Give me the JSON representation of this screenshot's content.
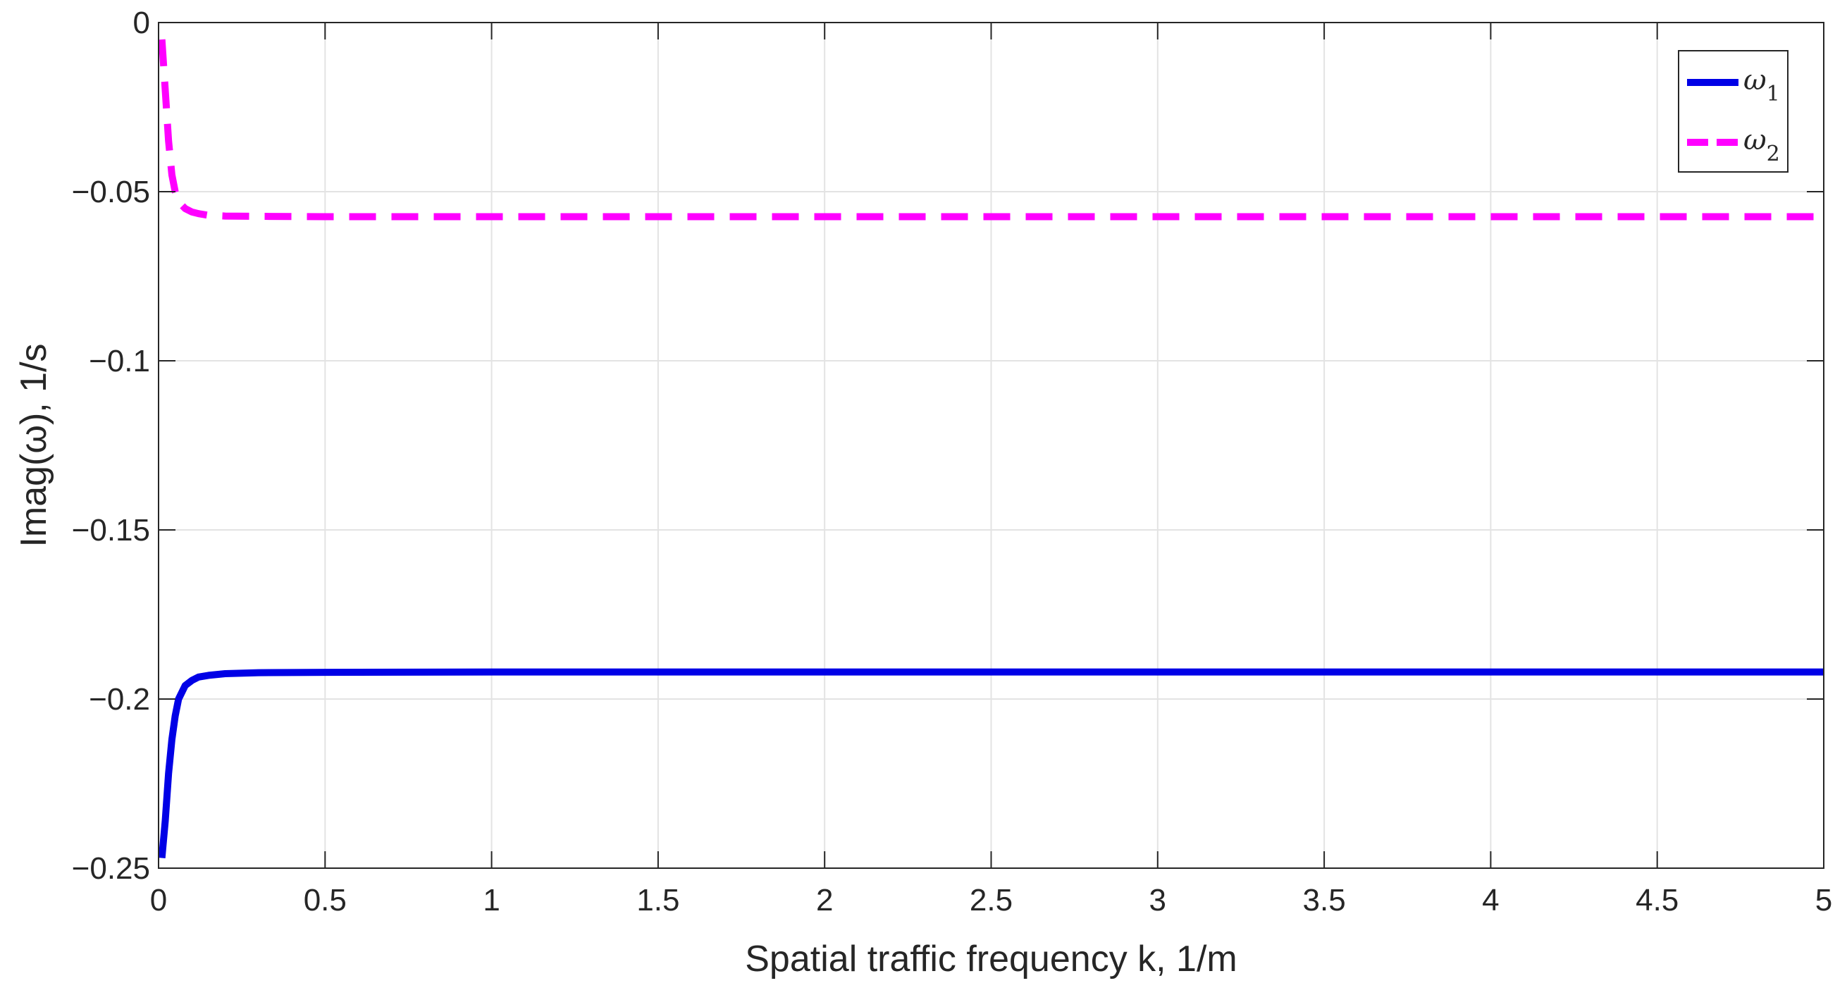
{
  "chart_data": {
    "type": "line",
    "title": "",
    "xlabel": "Spatial traffic frequency  k, 1/m",
    "ylabel": "Imag(ω), 1/s",
    "xlim": [
      0,
      5
    ],
    "ylim": [
      -0.25,
      0
    ],
    "xticks": [
      0,
      0.5,
      1,
      1.5,
      2,
      2.5,
      3,
      3.5,
      4,
      4.5,
      5
    ],
    "xtick_labels": [
      "0",
      "0.5",
      "1",
      "1.5",
      "2",
      "2.5",
      "3",
      "3.5",
      "4",
      "4.5",
      "5"
    ],
    "yticks": [
      0,
      -0.05,
      -0.1,
      -0.15,
      -0.2,
      -0.25
    ],
    "ytick_labels": [
      "0",
      "−0.05",
      "−0.1",
      "−0.15",
      "−0.2",
      "−0.25"
    ],
    "grid": true,
    "legend_position": "top-right",
    "series": [
      {
        "name": "ω1",
        "name_base": "ω",
        "name_sub": "1",
        "color": "#0000e6",
        "style": "solid",
        "x": [
          0.01,
          0.02,
          0.03,
          0.04,
          0.05,
          0.06,
          0.08,
          0.1,
          0.12,
          0.15,
          0.2,
          0.3,
          0.5,
          1,
          2,
          3,
          4,
          5
        ],
        "y": [
          -0.247,
          -0.236,
          -0.222,
          -0.212,
          -0.205,
          -0.2,
          -0.196,
          -0.1945,
          -0.1935,
          -0.193,
          -0.1925,
          -0.1922,
          -0.1921,
          -0.192,
          -0.192,
          -0.192,
          -0.192,
          -0.192
        ]
      },
      {
        "name": "ω2",
        "name_base": "ω",
        "name_sub": "2",
        "color": "#ff00ff",
        "style": "dashed",
        "x": [
          0.01,
          0.02,
          0.03,
          0.04,
          0.05,
          0.06,
          0.08,
          0.1,
          0.12,
          0.15,
          0.2,
          0.3,
          0.5,
          1,
          2,
          3,
          4,
          5
        ],
        "y": [
          -0.005,
          -0.02,
          -0.035,
          -0.045,
          -0.05,
          -0.053,
          -0.055,
          -0.056,
          -0.0565,
          -0.057,
          -0.0572,
          -0.0573,
          -0.0574,
          -0.0574,
          -0.0574,
          -0.0574,
          -0.0574,
          -0.0574
        ]
      }
    ]
  }
}
